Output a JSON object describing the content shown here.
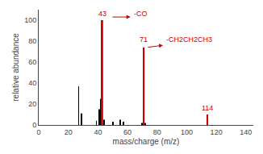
{
  "chart_data": {
    "type": "bar",
    "xlabel": "mass/charge (m/z)",
    "ylabel": "relative abundance",
    "xlim": [
      0,
      145
    ],
    "ylim": [
      0,
      110
    ],
    "xticks": [
      0,
      20,
      40,
      60,
      80,
      100,
      120,
      140
    ],
    "yticks": [
      0,
      20,
      40,
      60,
      80,
      100
    ],
    "grid": false,
    "series": [
      {
        "color": "#000000",
        "x": [
          27,
          29,
          39,
          41,
          42,
          44,
          50,
          55,
          57,
          70,
          72
        ],
        "values": [
          37,
          11,
          4,
          15,
          25,
          5,
          3,
          5,
          3,
          2,
          2
        ]
      },
      {
        "color": "#cc0000",
        "x": [
          43,
          71,
          114
        ],
        "values": [
          100,
          74,
          10
        ]
      }
    ],
    "annotations": [
      {
        "text": "43",
        "x": 43,
        "y": 101,
        "color": "#cc0000"
      },
      {
        "text": "-CO",
        "x": 63,
        "y": 101,
        "color": "#cc0000",
        "arrow": {
          "tail": [
            49,
            103
          ],
          "head": [
            62,
            103
          ]
        }
      },
      {
        "text": "71",
        "x": 71,
        "y": 76,
        "color": "#cc0000"
      },
      {
        "text": "-CH2CH2CH3",
        "x": 85,
        "y": 76,
        "color": "#cc0000",
        "arrow": {
          "tail": [
            73,
            74
          ],
          "head": [
            84,
            76
          ]
        }
      },
      {
        "text": "114",
        "x": 114,
        "y": 11,
        "color": "#cc0000"
      }
    ]
  }
}
